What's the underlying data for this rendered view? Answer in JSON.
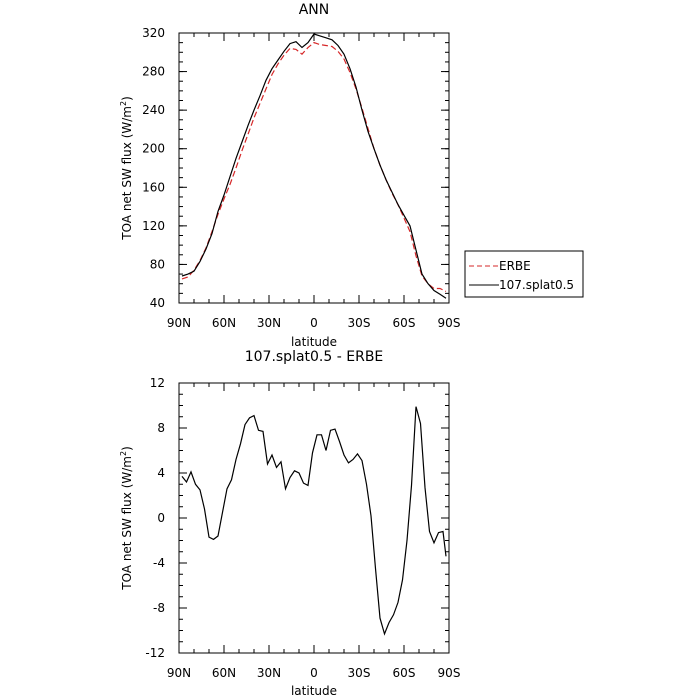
{
  "chart_data": [
    {
      "type": "line",
      "title": "ANN",
      "xlabel": "latitude",
      "ylabel_main": "TOA net SW flux (W/m",
      "ylabel_sup": "2",
      "ylabel_end": ")",
      "xlim": [
        90,
        -90
      ],
      "ylim": [
        40,
        320
      ],
      "xticks": [
        90,
        60,
        30,
        0,
        -30,
        -60,
        -90
      ],
      "xtick_labels": [
        "90N",
        "60N",
        "30N",
        "0",
        "30S",
        "60S",
        "90S"
      ],
      "yticks": [
        40,
        80,
        120,
        160,
        200,
        240,
        280,
        320
      ],
      "ytick_labels": [
        "40",
        "80",
        "120",
        "160",
        "200",
        "240",
        "280",
        "320"
      ],
      "legend_position": "right",
      "series": [
        {
          "name": "ERBE",
          "color": "#d62728",
          "dash": true,
          "x": [
            88,
            84,
            80,
            76,
            72,
            68,
            64,
            60,
            56,
            52,
            48,
            44,
            40,
            36,
            32,
            28,
            24,
            20,
            16,
            12,
            8,
            4,
            0,
            -4,
            -8,
            -12,
            -16,
            -20,
            -24,
            -28,
            -32,
            -36,
            -40,
            -44,
            -48,
            -52,
            -56,
            -60,
            -64,
            -68,
            -72,
            -76,
            -80,
            -84,
            -88
          ],
          "y": [
            65,
            67,
            74,
            84,
            97,
            114,
            132,
            148,
            163,
            180,
            198,
            215,
            232,
            247,
            262,
            277,
            288,
            297,
            304,
            303,
            298,
            305,
            310,
            308,
            307,
            306,
            301,
            293,
            279,
            262,
            242,
            221,
            200,
            183,
            168,
            154,
            142,
            128,
            114,
            89,
            68,
            60,
            55,
            55,
            52
          ]
        },
        {
          "name": "107.splat0.5",
          "color": "#000000",
          "dash": false,
          "x": [
            88,
            84,
            80,
            76,
            72,
            68,
            64,
            60,
            56,
            52,
            48,
            44,
            40,
            36,
            32,
            28,
            24,
            20,
            16,
            12,
            8,
            4,
            0,
            -4,
            -8,
            -12,
            -16,
            -20,
            -24,
            -28,
            -32,
            -36,
            -40,
            -44,
            -48,
            -52,
            -56,
            -60,
            -64,
            -68,
            -72,
            -76,
            -80,
            -84,
            -88
          ],
          "y": [
            68,
            70,
            73,
            83,
            96,
            112,
            135,
            152,
            171,
            190,
            207,
            224,
            240,
            255,
            271,
            283,
            292,
            301,
            309,
            311,
            305,
            310,
            319,
            317,
            315,
            313,
            307,
            298,
            283,
            264,
            240,
            218,
            200,
            183,
            168,
            155,
            142,
            131,
            120,
            95,
            70,
            60,
            53,
            49,
            45
          ]
        }
      ]
    },
    {
      "type": "line",
      "title": "107.splat0.5 - ERBE",
      "xlabel": "latitude",
      "ylabel_main": "TOA net SW flux (W/m",
      "ylabel_sup": "2",
      "ylabel_end": ")",
      "xlim": [
        90,
        -90
      ],
      "ylim": [
        -12,
        12
      ],
      "xticks": [
        90,
        60,
        30,
        0,
        -30,
        -60,
        -90
      ],
      "xtick_labels": [
        "90N",
        "60N",
        "30N",
        "0",
        "30S",
        "60S",
        "90S"
      ],
      "yticks": [
        -12,
        -8,
        -4,
        0,
        4,
        8,
        12
      ],
      "ytick_labels": [
        "-12",
        "-8",
        "-4",
        "0",
        "4",
        "8",
        "12"
      ],
      "series": [
        {
          "name": "",
          "color": "#000000",
          "dash": false,
          "x": [
            88,
            85,
            82,
            79,
            76,
            73,
            70,
            67,
            64,
            61,
            58,
            55,
            52,
            49,
            46,
            43,
            40,
            37,
            34,
            31,
            28,
            25,
            22,
            19,
            16,
            13,
            10,
            7,
            4,
            1,
            -2,
            -5,
            -8,
            -11,
            -14,
            -17,
            -20,
            -23,
            -26,
            -29,
            -32,
            -35,
            -38,
            -41,
            -44,
            -47,
            -50,
            -53,
            -56,
            -59,
            -62,
            -65,
            -68,
            -71,
            -74,
            -77,
            -80,
            -83,
            -86,
            -88
          ],
          "y": [
            3.7,
            3.2,
            4.1,
            3,
            2.5,
            0.8,
            -1.7,
            -1.9,
            -1.6,
            0.5,
            2.6,
            3.4,
            5.2,
            6.6,
            8.3,
            8.9,
            9.1,
            7.8,
            7.7,
            4.8,
            5.6,
            4.5,
            5.0,
            2.6,
            3.6,
            4.2,
            4.0,
            3.1,
            2.9,
            5.8,
            7.4,
            7.4,
            6.0,
            7.8,
            7.9,
            6.8,
            5.6,
            4.9,
            5.2,
            5.7,
            5.1,
            3.0,
            0.2,
            -4.5,
            -8.9,
            -10.3,
            -9.3,
            -8.6,
            -7.5,
            -5.5,
            -2.0,
            2.9,
            9.9,
            8.4,
            2.7,
            -1.2,
            -2.2,
            -1.3,
            -1.2,
            -3.4
          ]
        }
      ]
    }
  ]
}
